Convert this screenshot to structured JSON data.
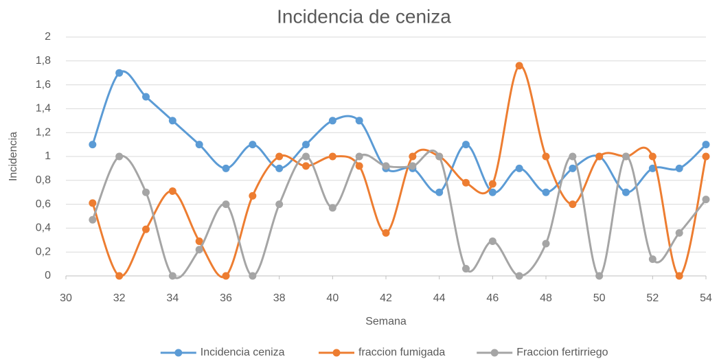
{
  "chart_data": {
    "type": "line",
    "title": "Incidencia de ceniza",
    "xlabel": "Semana",
    "ylabel": "Incidencia",
    "x": [
      31,
      32,
      33,
      34,
      35,
      36,
      37,
      38,
      39,
      40,
      41,
      42,
      43,
      44,
      45,
      46,
      47,
      48,
      49,
      50,
      51,
      52,
      53,
      54
    ],
    "series": [
      {
        "name": "Incidencia ceniza",
        "color": "#5b9bd5",
        "values": [
          1.1,
          1.7,
          1.5,
          1.3,
          1.1,
          0.9,
          1.1,
          0.9,
          1.1,
          1.3,
          1.3,
          0.9,
          0.9,
          0.7,
          1.1,
          0.7,
          0.9,
          0.7,
          0.9,
          1.0,
          0.7,
          0.9,
          0.9,
          1.1
        ]
      },
      {
        "name": "fraccion fumigada",
        "color": "#ed7d31",
        "values": [
          0.61,
          0,
          0.39,
          0.71,
          0.29,
          0,
          0.67,
          1.0,
          0.92,
          1.0,
          0.92,
          0.36,
          1.0,
          1.0,
          0.78,
          0.77,
          1.76,
          1.0,
          0.6,
          1.0,
          1.0,
          1.0,
          0,
          1.0
        ]
      },
      {
        "name": "Fraccion fertirriego",
        "color": "#a5a5a5",
        "values": [
          0.47,
          1.0,
          0.7,
          0,
          0.22,
          0.6,
          0,
          0.6,
          1.0,
          0.57,
          1.0,
          0.92,
          0.92,
          1.0,
          0.06,
          0.29,
          0,
          0.27,
          1.0,
          0,
          1.0,
          0.14,
          0.36,
          0.64
        ]
      }
    ],
    "xlim": [
      30,
      54
    ],
    "xticks": [
      30,
      32,
      34,
      36,
      38,
      40,
      42,
      44,
      46,
      48,
      50,
      52,
      54
    ],
    "ylim": [
      0,
      2
    ],
    "yticks": [
      0,
      {
        "value": 0.2,
        "label": "0,2"
      },
      {
        "value": 0.4,
        "label": "0,4"
      },
      {
        "value": 0.6,
        "label": "0,6"
      },
      {
        "value": 0.8,
        "label": "0,8"
      },
      1,
      {
        "value": 1.2,
        "label": "1,2"
      },
      {
        "value": 1.4,
        "label": "1,4"
      },
      {
        "value": 1.6,
        "label": "1,6"
      },
      {
        "value": 1.8,
        "label": "1,8"
      },
      2
    ],
    "grid": true,
    "smooth": true,
    "legend": "bottom"
  }
}
